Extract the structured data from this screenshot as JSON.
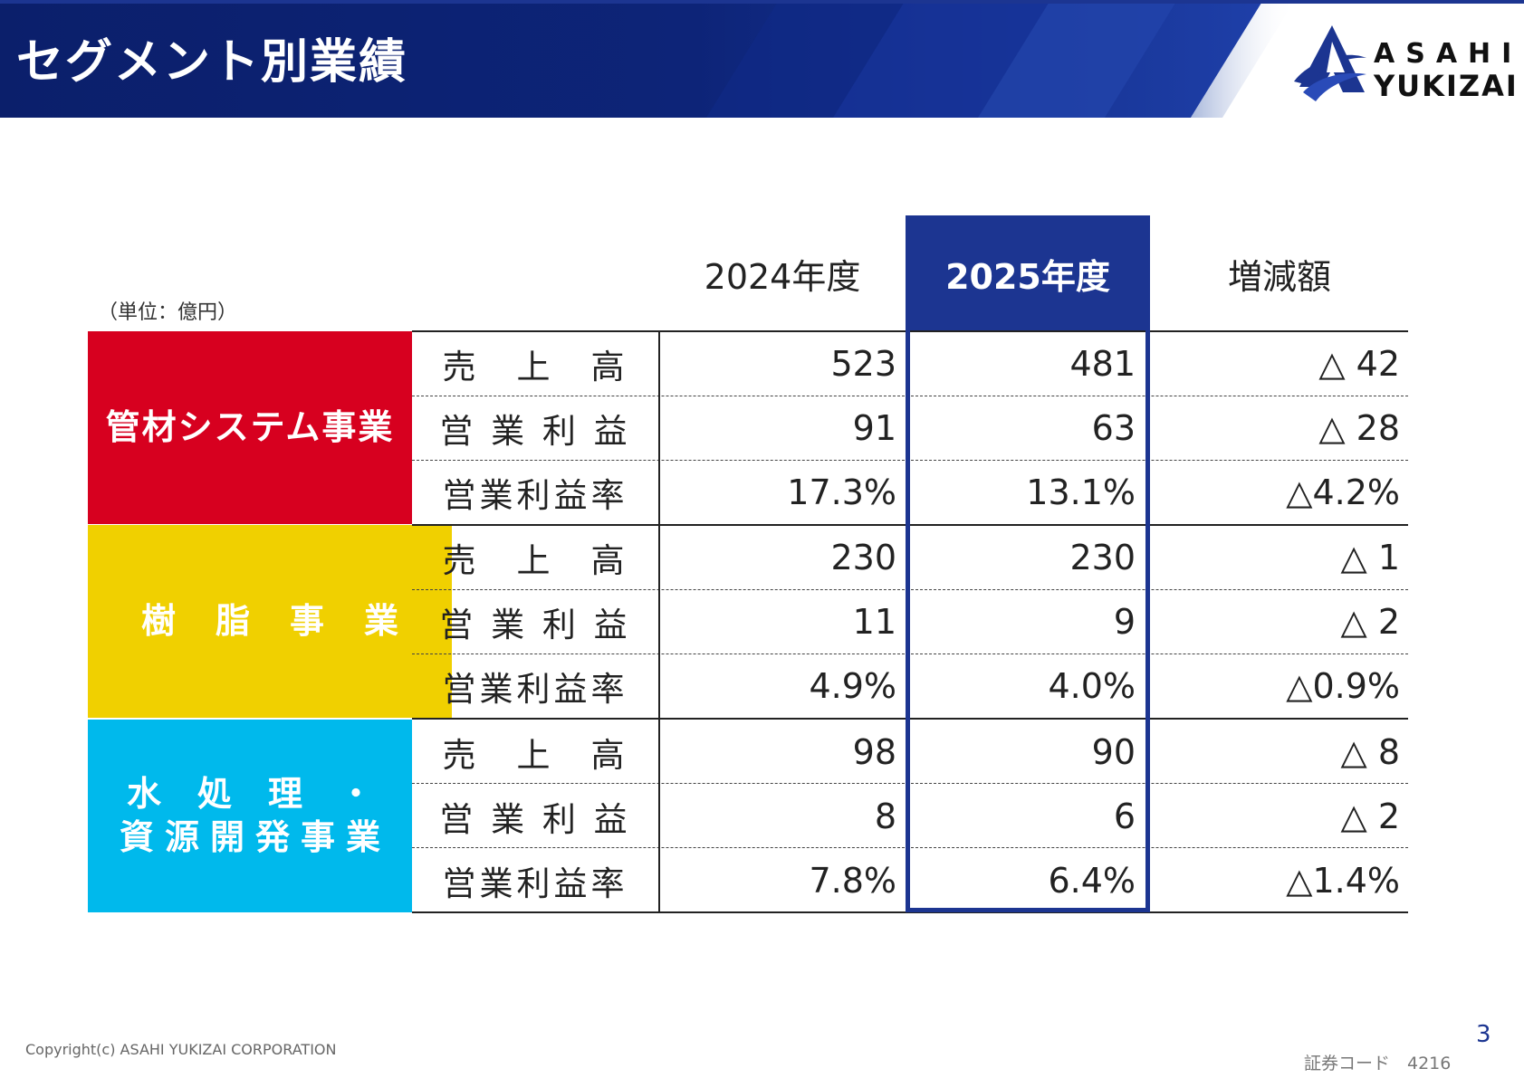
{
  "header": {
    "title": "セグメント別業績",
    "logo_line1": "ASAHI",
    "logo_line2": "YUKIZAI"
  },
  "table": {
    "unit_note": "（単位：億円）",
    "columns": [
      "2024年度",
      "2025年度",
      "増減額"
    ],
    "segments": [
      {
        "name": "管材システム事業",
        "color": "#d7001f",
        "rows": [
          {
            "metric": "売　上　高",
            "y2024": "523",
            "y2025": "481",
            "change": "△ 42"
          },
          {
            "metric": "営 業 利 益",
            "y2024": "91",
            "y2025": "63",
            "change": "△ 28"
          },
          {
            "metric": "営業利益率",
            "y2024": "17.3%",
            "y2025": "13.1%",
            "change": "△4.2%"
          }
        ]
      },
      {
        "name": "樹脂事業",
        "color": "#f0d000",
        "rows": [
          {
            "metric": "売　上　高",
            "y2024": "230",
            "y2025": "230",
            "change": "△ 1"
          },
          {
            "metric": "営 業 利 益",
            "y2024": "11",
            "y2025": "9",
            "change": "△ 2"
          },
          {
            "metric": "営業利益率",
            "y2024": "4.9%",
            "y2025": "4.0%",
            "change": "△0.9%"
          }
        ]
      },
      {
        "name_line1": "水処理・",
        "name_line2": "資源開発事業",
        "color": "#00b9ec",
        "rows": [
          {
            "metric": "売　上　高",
            "y2024": "98",
            "y2025": "90",
            "change": "△ 8"
          },
          {
            "metric": "営 業 利 益",
            "y2024": "8",
            "y2025": "6",
            "change": "△ 2"
          },
          {
            "metric": "営業利益率",
            "y2024": "7.8%",
            "y2025": "6.4%",
            "change": "△1.4%"
          }
        ]
      }
    ]
  },
  "footer": {
    "copyright": "Copyright(c) ASAHI YUKIZAI CORPORATION",
    "page_number": "3",
    "security_code": "証券コード　4216"
  },
  "colors": {
    "accent": "#1c3591",
    "banner_dark": "#0b1f6b"
  }
}
